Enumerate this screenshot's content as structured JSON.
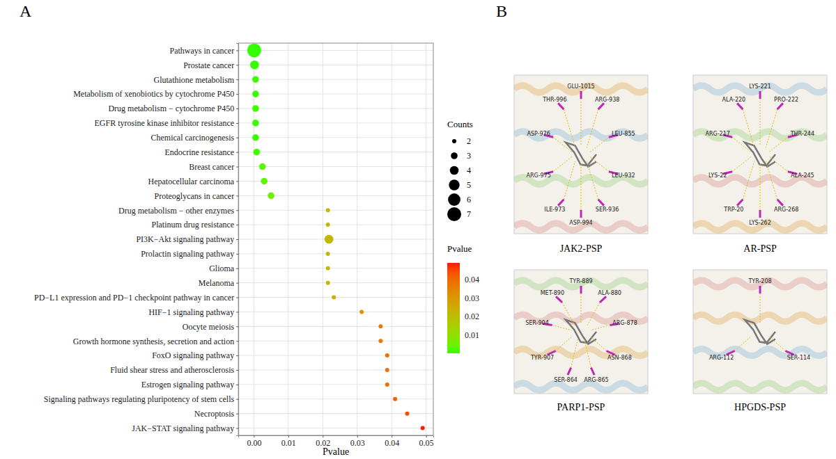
{
  "chart_data": {
    "type": "scatter",
    "panel_label": "A",
    "xlabel": "Pvalue",
    "categories": [
      "Pathways in cancer",
      "Prostate cancer",
      "Glutathione metabolism",
      "Metabolism of xenobiotics by cytochrome P450",
      "Drug metabolism − cytochrome P450",
      "EGFR tyrosine kinase inhibitor resistance",
      "Chemical carcinogenesis",
      "Endocrine resistance",
      "Breast cancer",
      "Hepatocellular carcinoma",
      "Proteoglycans in cancer",
      "Drug metabolism − other enzymes",
      "Platinum drug resistance",
      "PI3K−Akt signaling pathway",
      "Prolactin signaling pathway",
      "Glioma",
      "Melanoma",
      "PD−L1 expression and PD−1 checkpoint pathway in cancer",
      "HIF−1 signaling pathway",
      "Oocyte meiosis",
      "Growth hormone synthesis, secretion and action",
      "FoxO signaling pathway",
      "Fluid shear stress and atherosclerosis",
      "Estrogen signaling pathway",
      "Signaling pathways regulating pluripotency of stem cells",
      "Necroptosis",
      "JAK−STAT signaling pathway"
    ],
    "values": [
      0.0001,
      0.0002,
      0.0005,
      0.0005,
      0.0005,
      0.0005,
      0.0005,
      0.0008,
      0.0025,
      0.003,
      0.005,
      0.0215,
      0.0215,
      0.0218,
      0.0215,
      0.0215,
      0.0215,
      0.0232,
      0.0313,
      0.0368,
      0.0368,
      0.0387,
      0.0387,
      0.0387,
      0.041,
      0.0445,
      0.049
    ],
    "counts": [
      7,
      4,
      3,
      3,
      3,
      3,
      3,
      3,
      3,
      3,
      3,
      2,
      2,
      4,
      2,
      2,
      2,
      2,
      2,
      2,
      2,
      2,
      2,
      2,
      2,
      2,
      2
    ],
    "xlim": [
      -0.0045,
      0.0521
    ],
    "xticks": [
      {
        "value": 0,
        "label": "0.00"
      },
      0.01,
      0.02,
      0.03,
      0.04,
      0.05
    ],
    "grid": true,
    "size_legend": {
      "title": "Counts",
      "values": [
        2,
        3,
        4,
        5,
        6,
        7
      ]
    },
    "colorbar": {
      "title": "Pvalue",
      "range": [
        0.0001,
        0.049
      ],
      "ticks": [
        0.01,
        0.02,
        0.03,
        0.04
      ],
      "colors": [
        "#33ff00",
        "#ff1a00"
      ]
    }
  },
  "docking": {
    "panel_label": "B",
    "panels": [
      {
        "caption": "JAK2-PSP",
        "residues": [
          "GLU-1015",
          "ARG-938",
          "LEU-855",
          "LEU-932",
          "SER-936",
          "ASP-994",
          "ILE-973",
          "ARG-975",
          "ASP-976",
          "THR-996"
        ]
      },
      {
        "caption": "AR-PSP",
        "residues": [
          "LYS-221",
          "PRO-222",
          "THR-244",
          "ALA-245",
          "ARG-268",
          "LYS-262",
          "TRP-20",
          "LYS-22",
          "ARG-217",
          "ALA-220"
        ]
      },
      {
        "caption": "PARP1-PSP",
        "residues": [
          "TYR-889",
          "ALA-880",
          "ARG-878",
          "ASN-868",
          "ARG-865",
          "SER-864",
          "TYR-907",
          "SER-904",
          "MET-890"
        ]
      },
      {
        "caption": "HPGDS-PSP",
        "residues": [
          "TYR-208",
          "SER-114",
          "ARG-112"
        ]
      }
    ]
  }
}
